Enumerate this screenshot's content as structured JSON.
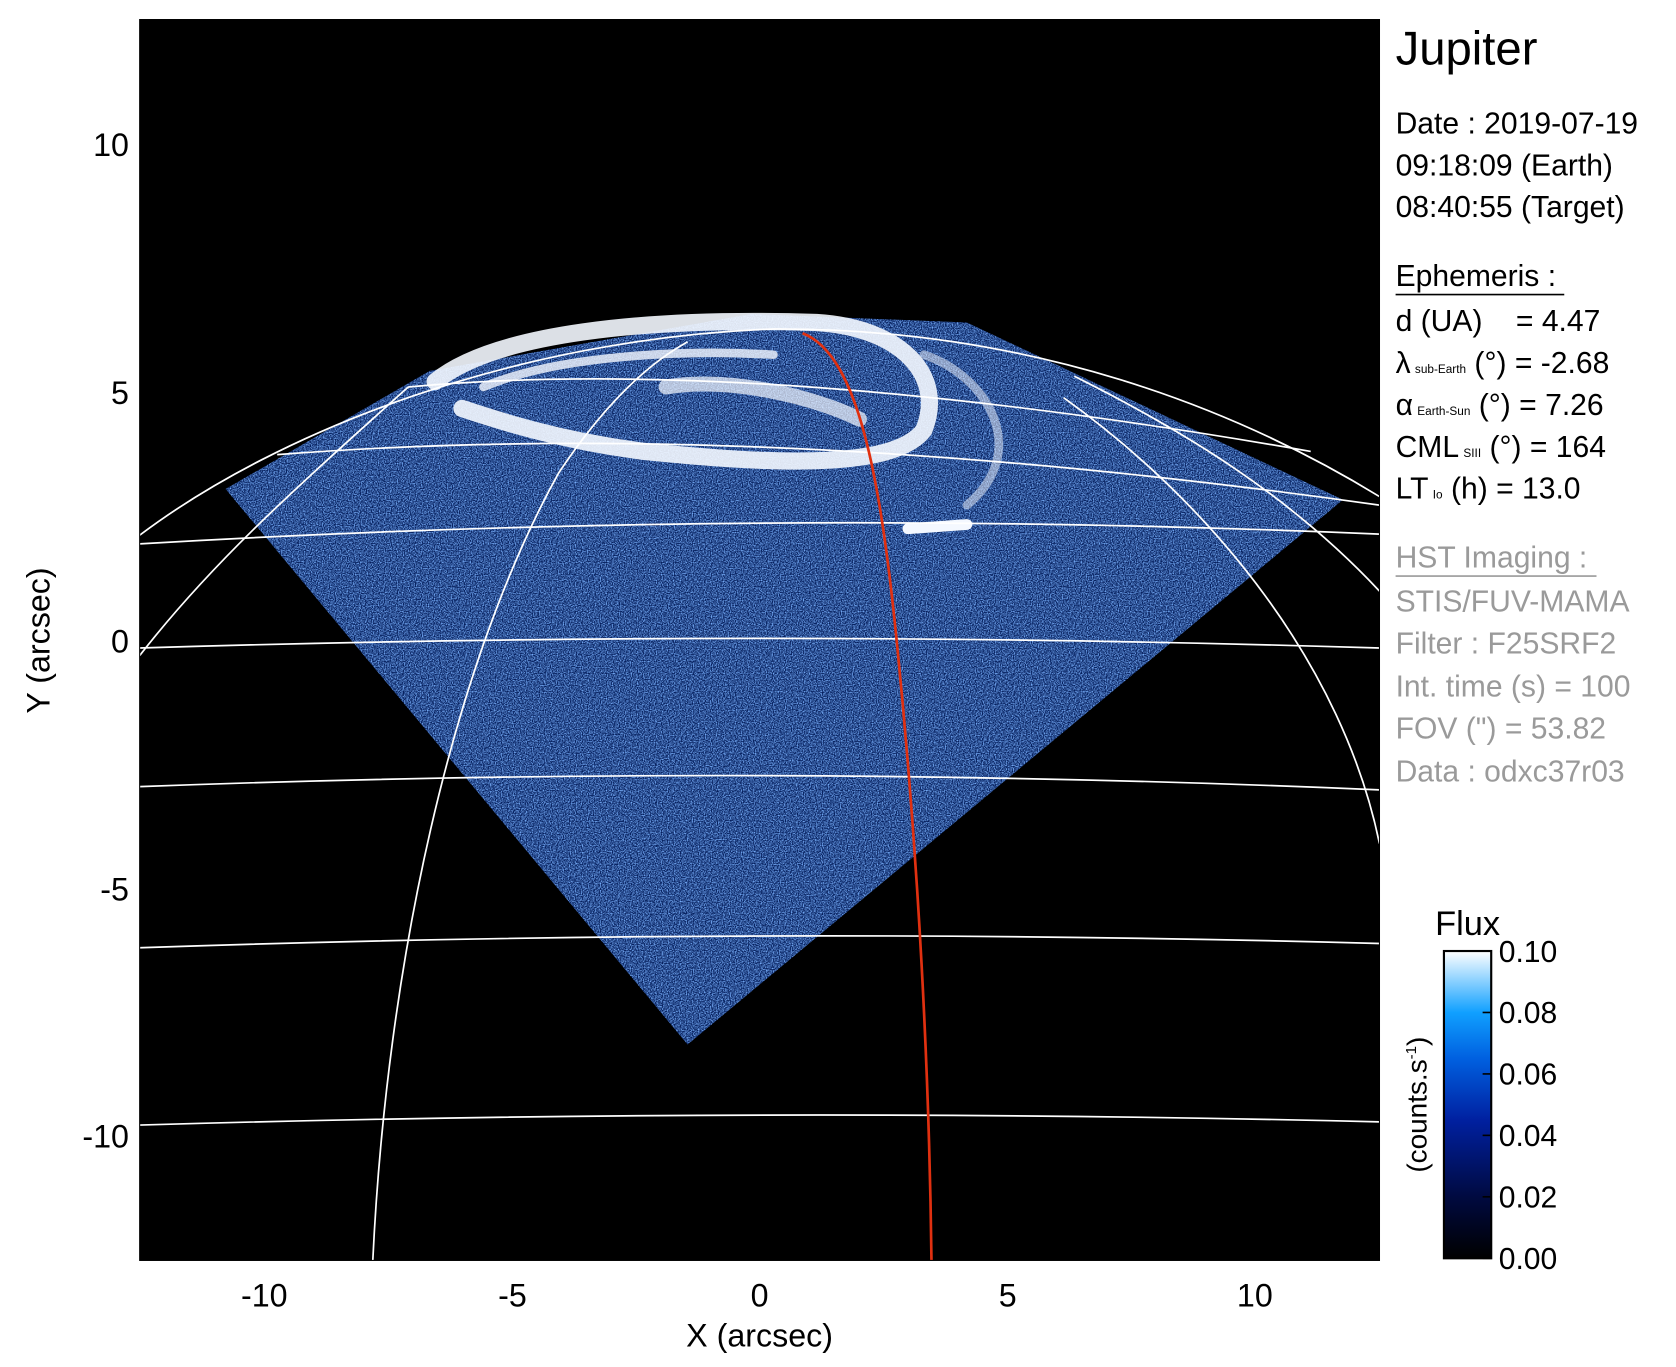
{
  "chart_data": {
    "type": "heatmap",
    "title": "Jupiter",
    "xlabel": "X (arcsec)",
    "ylabel": "Y (arcsec)",
    "xlim": [
      -12.5,
      12.5
    ],
    "ylim": [
      -12.5,
      12.5
    ],
    "x_ticks": [
      "-10",
      "-5",
      "0",
      "5",
      "10"
    ],
    "y_ticks": [
      "10",
      "5",
      "0",
      "-5",
      "-10"
    ],
    "x_tick_values": [
      -10,
      -5,
      0,
      5,
      10
    ],
    "y_tick_values": [
      10,
      5,
      0,
      -5,
      -10
    ],
    "grid": "planetographic lat/lon grid (white)",
    "overlay_line_color": "#e03010",
    "colorbar": {
      "title": "Flux",
      "label": "(counts.s",
      "label_sup": "-1",
      "label_close": ")",
      "range": [
        0.0,
        0.1
      ],
      "ticks": [
        "0.00",
        "0.02",
        "0.04",
        "0.06",
        "0.08",
        "0.10"
      ],
      "tick_values": [
        0.0,
        0.02,
        0.04,
        0.06,
        0.08,
        0.1
      ],
      "colors": [
        "#000000",
        "#000a40",
        "#0020a0",
        "#0060e0",
        "#10a0ff",
        "#ffffff"
      ]
    }
  },
  "info": {
    "target": "Jupiter",
    "date": "Date : 2019-07-19",
    "time_earth": "09:18:09 (Earth)",
    "time_target": "08:40:55 (Target)",
    "ephemeris_header": "Ephemeris :",
    "ephemeris": [
      {
        "sym": "d (UA)",
        "sub": "",
        "rest": "    = 4.47"
      },
      {
        "sym": "λ",
        "sub": "sub-Earth",
        "rest": " (°) = -2.68"
      },
      {
        "sym": "α",
        "sub": "Earth-Sun",
        "rest": " (°) = 7.26"
      },
      {
        "sym": "CML",
        "sub": "SIII",
        "rest": " (°) = 164"
      },
      {
        "sym": "LT",
        "sub": "Io",
        "rest": " (h) = 13.0"
      }
    ],
    "imaging_header": "HST Imaging :",
    "imaging": [
      "STIS/FUV-MAMA",
      "Filter : F25SRF2",
      "Int. time (s) = 100",
      "FOV (\") = 53.82",
      "Data : odxc37r03"
    ]
  }
}
